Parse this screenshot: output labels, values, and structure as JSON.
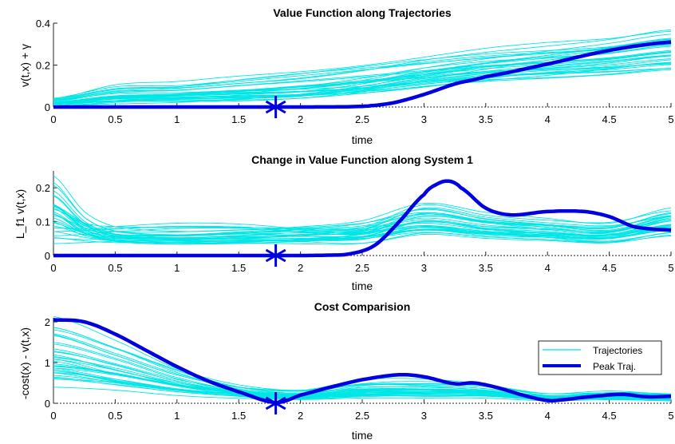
{
  "chart_data": [
    {
      "type": "line",
      "title": "Value Function along Trajectories",
      "xlabel": "time",
      "ylabel": "v(t,x) + γ",
      "xlim": [
        0,
        5
      ],
      "ylim": [
        0,
        0.4
      ],
      "xticks": [
        "0",
        "0.5",
        "1",
        "1.5",
        "2",
        "2.5",
        "3",
        "3.5",
        "4",
        "4.5",
        "5"
      ],
      "yticks": [
        "0",
        "0.2",
        "0.4"
      ],
      "trajectory_color": "#00e5e5",
      "peak_color": "#0000e0",
      "series": [
        {
          "name": "Peak Traj.",
          "x": [
            0,
            0.5,
            1,
            1.5,
            2,
            2.5,
            2.75,
            3,
            3.25,
            3.5,
            4,
            4.5,
            5
          ],
          "y": [
            0,
            0,
            0,
            0,
            0,
            0.003,
            0.02,
            0.06,
            0.11,
            0.145,
            0.205,
            0.27,
            0.31
          ]
        },
        {
          "x": [
            0,
            0.5,
            1,
            1.5,
            2,
            2.5,
            3,
            3.5,
            4,
            4.5,
            5
          ],
          "y": [
            0.04,
            0.1,
            0.11,
            0.14,
            0.17,
            0.2,
            0.23,
            0.26,
            0.28,
            0.3,
            0.34
          ]
        },
        {
          "x": [
            0,
            0.5,
            1,
            1.5,
            2,
            2.5,
            3,
            3.5,
            4,
            4.5,
            5
          ],
          "y": [
            0.02,
            0.05,
            0.06,
            0.07,
            0.08,
            0.12,
            0.18,
            0.22,
            0.25,
            0.28,
            0.32
          ]
        },
        {
          "x": [
            0,
            0.5,
            1,
            1.5,
            2,
            2.5,
            3,
            3.5,
            4,
            4.5,
            5
          ],
          "y": [
            0.01,
            0.03,
            0.04,
            0.05,
            0.07,
            0.1,
            0.15,
            0.21,
            0.25,
            0.29,
            0.33
          ]
        }
      ],
      "markers": [
        {
          "x": 1.8,
          "y": 0
        }
      ]
    },
    {
      "type": "line",
      "title": "Change in Value Function along System 1",
      "xlabel": "time",
      "ylabel": "L_f1 v(t,x)",
      "xlim": [
        0,
        5
      ],
      "ylim": [
        0,
        0.25
      ],
      "xticks": [
        "0",
        "0.5",
        "1",
        "1.5",
        "2",
        "2.5",
        "3",
        "3.5",
        "4",
        "4.5",
        "5"
      ],
      "yticks": [
        "0",
        "0.1",
        "0.2"
      ],
      "trajectory_color": "#00e5e5",
      "peak_color": "#0000e0",
      "series": [
        {
          "name": "Peak Traj.",
          "x": [
            0,
            0.5,
            1,
            1.5,
            2,
            2.2,
            2.4,
            2.6,
            2.8,
            3,
            3.1,
            3.2,
            3.3,
            3.5,
            3.7,
            4,
            4.3,
            4.5,
            4.7,
            5
          ],
          "y": [
            0,
            0,
            0,
            0,
            0,
            0.001,
            0.005,
            0.03,
            0.1,
            0.18,
            0.21,
            0.22,
            0.2,
            0.14,
            0.12,
            0.13,
            0.13,
            0.115,
            0.085,
            0.075
          ]
        },
        {
          "x": [
            0,
            0.25,
            0.5,
            1,
            1.5,
            2,
            2.5,
            3,
            3.5,
            4,
            4.5,
            5
          ],
          "y": [
            0.24,
            0.12,
            0.08,
            0.07,
            0.08,
            0.09,
            0.1,
            0.12,
            0.1,
            0.09,
            0.08,
            0.13
          ]
        },
        {
          "x": [
            0,
            0.25,
            0.5,
            1,
            1.5,
            2,
            2.5,
            3,
            3.5,
            4,
            4.5,
            5
          ],
          "y": [
            0.16,
            0.1,
            0.06,
            0.05,
            0.05,
            0.06,
            0.08,
            0.15,
            0.12,
            0.1,
            0.09,
            0.12
          ]
        },
        {
          "x": [
            0,
            0.25,
            0.5,
            1,
            1.5,
            2,
            2.5,
            3,
            3.5,
            4,
            4.5,
            5
          ],
          "y": [
            0.05,
            0.06,
            0.07,
            0.08,
            0.08,
            0.07,
            0.06,
            0.1,
            0.08,
            0.07,
            0.06,
            0.1
          ]
        }
      ],
      "markers": [
        {
          "x": 1.8,
          "y": 0
        }
      ]
    },
    {
      "type": "line",
      "title": "Cost Comparision",
      "xlabel": "time",
      "ylabel": "-cost(x) - v(t,x)",
      "xlim": [
        0,
        5
      ],
      "ylim": [
        0,
        2.1
      ],
      "xticks": [
        "0",
        "0.5",
        "1",
        "1.5",
        "2",
        "2.5",
        "3",
        "3.5",
        "4",
        "4.5",
        "5"
      ],
      "yticks": [
        "0",
        "1",
        "2"
      ],
      "trajectory_color": "#00e5e5",
      "peak_color": "#0000e0",
      "legend": {
        "position": "right",
        "entries": [
          "Trajectories",
          "Peak Traj."
        ]
      },
      "series": [
        {
          "name": "Peak Traj.",
          "x": [
            0,
            0.25,
            0.5,
            0.75,
            1,
            1.25,
            1.5,
            1.8,
            2,
            2.25,
            2.5,
            2.8,
            3,
            3.25,
            3.4,
            3.6,
            3.8,
            4,
            4.1,
            4.3,
            4.6,
            4.8,
            5
          ],
          "y": [
            2.05,
            2.0,
            1.7,
            1.3,
            0.9,
            0.55,
            0.28,
            0.02,
            0.2,
            0.4,
            0.58,
            0.7,
            0.65,
            0.48,
            0.5,
            0.38,
            0.2,
            0.07,
            0.08,
            0.15,
            0.22,
            0.16,
            0.17
          ]
        },
        {
          "x": [
            0,
            0.5,
            1,
            1.5,
            2,
            2.5,
            3,
            3.5,
            4,
            4.5,
            5
          ],
          "y": [
            1.9,
            1.4,
            0.8,
            0.4,
            0.3,
            0.5,
            0.5,
            0.4,
            0.2,
            0.25,
            0.2
          ]
        },
        {
          "x": [
            0,
            0.5,
            1,
            1.5,
            2,
            2.5,
            3,
            3.5,
            4,
            4.5,
            5
          ],
          "y": [
            1.2,
            0.8,
            0.5,
            0.3,
            0.2,
            0.3,
            0.35,
            0.3,
            0.15,
            0.2,
            0.15
          ]
        },
        {
          "x": [
            0,
            0.5,
            1,
            1.5,
            2,
            2.5,
            3,
            3.5,
            4,
            4.5,
            5
          ],
          "y": [
            0.6,
            0.5,
            0.3,
            0.2,
            0.15,
            0.2,
            0.2,
            0.2,
            0.1,
            0.15,
            0.1
          ]
        }
      ],
      "markers": [
        {
          "x": 1.8,
          "y": 0
        }
      ]
    }
  ]
}
